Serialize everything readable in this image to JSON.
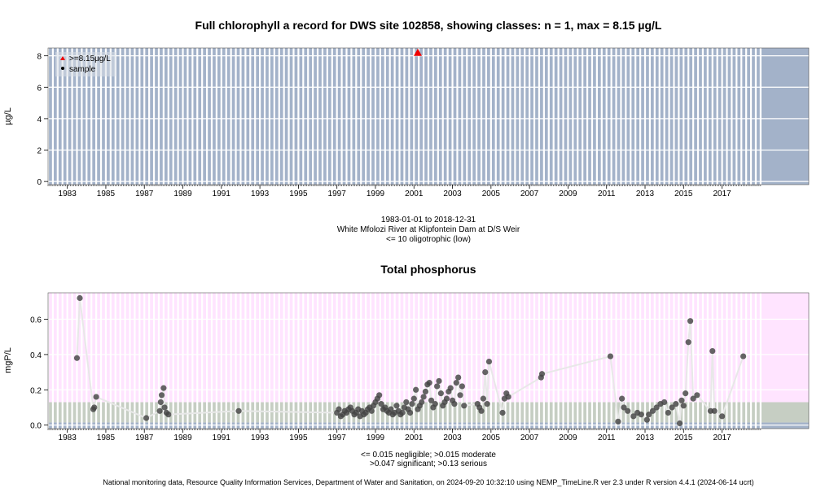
{
  "footer": "National monitoring data, Resource Quality Information Services, Department of Water and Sanitation, on 2024-09-20 10:32:10 using NEMP_TimeLine.R ver 2.3 under R version 4.4.1 (2024-06-14 ucrt)",
  "colors": {
    "panel1_bg": "#a3b2c9",
    "pink_band": "#ffe4ff",
    "grey_band": "#c6cec3",
    "blue_band": "#a3b2c9",
    "point": "#444444",
    "marker_red": "#ee0000",
    "line": "#e8e8e8"
  },
  "chart_data": [
    {
      "type": "scatter",
      "title": "Full chlorophyll a record for DWS site 102858, showing classes: n = 1, max = 8.15 µg/L",
      "ylabel": "µg/L",
      "xlim": [
        1982.0,
        2021.5
      ],
      "ylim": [
        -0.2,
        8.5
      ],
      "yticks": [
        0,
        2,
        4,
        6,
        8
      ],
      "ytick_labels": [
        "0",
        "2",
        "4",
        "6",
        "8"
      ],
      "xticks": [
        1983,
        1985,
        1987,
        1989,
        1991,
        1993,
        1995,
        1997,
        1999,
        2001,
        2003,
        2005,
        2007,
        2009,
        2011,
        2013,
        2015,
        2017
      ],
      "xtick_labels": [
        "1983",
        "1985",
        "1987",
        "1989",
        "1991",
        "1993",
        "1995",
        "1997",
        "1999",
        "2001",
        "2003",
        "2005",
        "2007",
        "2009",
        "2011",
        "2013",
        "2015",
        "2017"
      ],
      "grid": true,
      "legend": {
        "position": "top-left",
        "entries": [
          {
            "label": ">=8.15µg/L",
            "marker": "triangle",
            "color": "#ee0000"
          },
          {
            "label": "sample",
            "marker": "dot",
            "color": "#000000"
          }
        ]
      },
      "points": [
        {
          "x": 2001.2,
          "y": 8.15
        }
      ],
      "notes": [
        "1983-01-01 to 2018-12-31",
        "White Mfolozi River at Klipfontein Dam at D/S Weir",
        "<= 10 oligotrophic (low)"
      ]
    },
    {
      "type": "scatter",
      "title": "Total phosphorus",
      "ylabel": "mgP/L",
      "xlim": [
        1982.0,
        2021.5
      ],
      "ylim": [
        -0.02,
        0.75
      ],
      "yticks": [
        0.0,
        0.2,
        0.4,
        0.6
      ],
      "ytick_labels": [
        "0.0",
        "0.2",
        "0.4",
        "0.6"
      ],
      "xticks": [
        1983,
        1985,
        1987,
        1989,
        1991,
        1993,
        1995,
        1997,
        1999,
        2001,
        2003,
        2005,
        2007,
        2009,
        2011,
        2013,
        2015,
        2017
      ],
      "xtick_labels": [
        "1983",
        "1985",
        "1987",
        "1989",
        "1991",
        "1993",
        "1995",
        "1997",
        "1999",
        "2001",
        "2003",
        "2005",
        "2007",
        "2009",
        "2011",
        "2013",
        "2015",
        "2017"
      ],
      "grid": true,
      "class_bands": [
        {
          "from": -0.02,
          "to": 0.015,
          "color": "#a3b2c9"
        },
        {
          "from": 0.015,
          "to": 0.13,
          "color": "#c6cec3"
        },
        {
          "from": 0.13,
          "to": 0.75,
          "color": "#ffe4ff"
        }
      ],
      "points": [
        {
          "x": 1983.5,
          "y": 0.38
        },
        {
          "x": 1983.65,
          "y": 0.72
        },
        {
          "x": 1984.35,
          "y": 0.09
        },
        {
          "x": 1984.4,
          "y": 0.1
        },
        {
          "x": 1984.5,
          "y": 0.16
        },
        {
          "x": 1987.1,
          "y": 0.04
        },
        {
          "x": 1987.8,
          "y": 0.08
        },
        {
          "x": 1987.85,
          "y": 0.13
        },
        {
          "x": 1987.9,
          "y": 0.17
        },
        {
          "x": 1988.0,
          "y": 0.21
        },
        {
          "x": 1988.05,
          "y": 0.1
        },
        {
          "x": 1988.15,
          "y": 0.07
        },
        {
          "x": 1988.25,
          "y": 0.06
        },
        {
          "x": 1991.9,
          "y": 0.08
        },
        {
          "x": 1997.0,
          "y": 0.07
        },
        {
          "x": 1997.1,
          "y": 0.09
        },
        {
          "x": 1997.2,
          "y": 0.05
        },
        {
          "x": 1997.3,
          "y": 0.06
        },
        {
          "x": 1997.4,
          "y": 0.08
        },
        {
          "x": 1997.5,
          "y": 0.07
        },
        {
          "x": 1997.6,
          "y": 0.09
        },
        {
          "x": 1997.7,
          "y": 0.1
        },
        {
          "x": 1997.8,
          "y": 0.08
        },
        {
          "x": 1997.9,
          "y": 0.06
        },
        {
          "x": 1998.0,
          "y": 0.07
        },
        {
          "x": 1998.1,
          "y": 0.09
        },
        {
          "x": 1998.2,
          "y": 0.05
        },
        {
          "x": 1998.3,
          "y": 0.08
        },
        {
          "x": 1998.4,
          "y": 0.06
        },
        {
          "x": 1998.5,
          "y": 0.07
        },
        {
          "x": 1998.6,
          "y": 0.09
        },
        {
          "x": 1998.7,
          "y": 0.1
        },
        {
          "x": 1998.8,
          "y": 0.08
        },
        {
          "x": 1998.9,
          "y": 0.11
        },
        {
          "x": 1999.0,
          "y": 0.13
        },
        {
          "x": 1999.1,
          "y": 0.15
        },
        {
          "x": 1999.2,
          "y": 0.17
        },
        {
          "x": 1999.3,
          "y": 0.12
        },
        {
          "x": 1999.4,
          "y": 0.09
        },
        {
          "x": 1999.5,
          "y": 0.1
        },
        {
          "x": 1999.6,
          "y": 0.08
        },
        {
          "x": 1999.7,
          "y": 0.07
        },
        {
          "x": 1999.8,
          "y": 0.09
        },
        {
          "x": 1999.9,
          "y": 0.06
        },
        {
          "x": 2000.0,
          "y": 0.07
        },
        {
          "x": 2000.1,
          "y": 0.11
        },
        {
          "x": 2000.2,
          "y": 0.08
        },
        {
          "x": 2000.3,
          "y": 0.06
        },
        {
          "x": 2000.4,
          "y": 0.07
        },
        {
          "x": 2000.5,
          "y": 0.1
        },
        {
          "x": 2000.6,
          "y": 0.13
        },
        {
          "x": 2000.7,
          "y": 0.09
        },
        {
          "x": 2000.8,
          "y": 0.07
        },
        {
          "x": 2000.9,
          "y": 0.12
        },
        {
          "x": 2001.0,
          "y": 0.15
        },
        {
          "x": 2001.1,
          "y": 0.2
        },
        {
          "x": 2001.2,
          "y": 0.09
        },
        {
          "x": 2001.3,
          "y": 0.11
        },
        {
          "x": 2001.4,
          "y": 0.13
        },
        {
          "x": 2001.5,
          "y": 0.16
        },
        {
          "x": 2001.6,
          "y": 0.19
        },
        {
          "x": 2001.7,
          "y": 0.23
        },
        {
          "x": 2001.8,
          "y": 0.24
        },
        {
          "x": 2001.9,
          "y": 0.14
        },
        {
          "x": 2002.0,
          "y": 0.1
        },
        {
          "x": 2002.1,
          "y": 0.12
        },
        {
          "x": 2002.2,
          "y": 0.22
        },
        {
          "x": 2002.3,
          "y": 0.25
        },
        {
          "x": 2002.4,
          "y": 0.18
        },
        {
          "x": 2002.5,
          "y": 0.11
        },
        {
          "x": 2002.6,
          "y": 0.13
        },
        {
          "x": 2002.7,
          "y": 0.15
        },
        {
          "x": 2002.8,
          "y": 0.19
        },
        {
          "x": 2002.9,
          "y": 0.21
        },
        {
          "x": 2003.0,
          "y": 0.14
        },
        {
          "x": 2003.1,
          "y": 0.12
        },
        {
          "x": 2003.2,
          "y": 0.24
        },
        {
          "x": 2003.3,
          "y": 0.27
        },
        {
          "x": 2003.4,
          "y": 0.17
        },
        {
          "x": 2003.5,
          "y": 0.22
        },
        {
          "x": 2003.6,
          "y": 0.11
        },
        {
          "x": 2004.3,
          "y": 0.12
        },
        {
          "x": 2004.4,
          "y": 0.1
        },
        {
          "x": 2004.5,
          "y": 0.08
        },
        {
          "x": 2004.6,
          "y": 0.15
        },
        {
          "x": 2004.7,
          "y": 0.3
        },
        {
          "x": 2004.8,
          "y": 0.12
        },
        {
          "x": 2004.9,
          "y": 0.36
        },
        {
          "x": 2005.6,
          "y": 0.07
        },
        {
          "x": 2005.7,
          "y": 0.15
        },
        {
          "x": 2005.8,
          "y": 0.18
        },
        {
          "x": 2005.9,
          "y": 0.16
        },
        {
          "x": 2007.6,
          "y": 0.27
        },
        {
          "x": 2007.65,
          "y": 0.29
        },
        {
          "x": 2011.2,
          "y": 0.39
        },
        {
          "x": 2011.6,
          "y": 0.02
        },
        {
          "x": 2011.8,
          "y": 0.15
        },
        {
          "x": 2011.9,
          "y": 0.1
        },
        {
          "x": 2012.1,
          "y": 0.08
        },
        {
          "x": 2012.4,
          "y": 0.05
        },
        {
          "x": 2012.6,
          "y": 0.07
        },
        {
          "x": 2012.8,
          "y": 0.06
        },
        {
          "x": 2013.1,
          "y": 0.03
        },
        {
          "x": 2013.2,
          "y": 0.06
        },
        {
          "x": 2013.4,
          "y": 0.08
        },
        {
          "x": 2013.6,
          "y": 0.1
        },
        {
          "x": 2013.8,
          "y": 0.12
        },
        {
          "x": 2014.0,
          "y": 0.13
        },
        {
          "x": 2014.2,
          "y": 0.07
        },
        {
          "x": 2014.4,
          "y": 0.1
        },
        {
          "x": 2014.6,
          "y": 0.12
        },
        {
          "x": 2014.8,
          "y": 0.01
        },
        {
          "x": 2014.9,
          "y": 0.14
        },
        {
          "x": 2015.0,
          "y": 0.11
        },
        {
          "x": 2015.1,
          "y": 0.18
        },
        {
          "x": 2015.25,
          "y": 0.47
        },
        {
          "x": 2015.35,
          "y": 0.59
        },
        {
          "x": 2015.5,
          "y": 0.15
        },
        {
          "x": 2015.7,
          "y": 0.17
        },
        {
          "x": 2016.4,
          "y": 0.08
        },
        {
          "x": 2016.5,
          "y": 0.42
        },
        {
          "x": 2016.6,
          "y": 0.08
        },
        {
          "x": 2017.0,
          "y": 0.05
        },
        {
          "x": 2018.1,
          "y": 0.39
        }
      ],
      "notes": [
        "<= 0.015 negligible; >0.015 moderate",
        ">0.047 significant; >0.13 serious"
      ]
    }
  ]
}
